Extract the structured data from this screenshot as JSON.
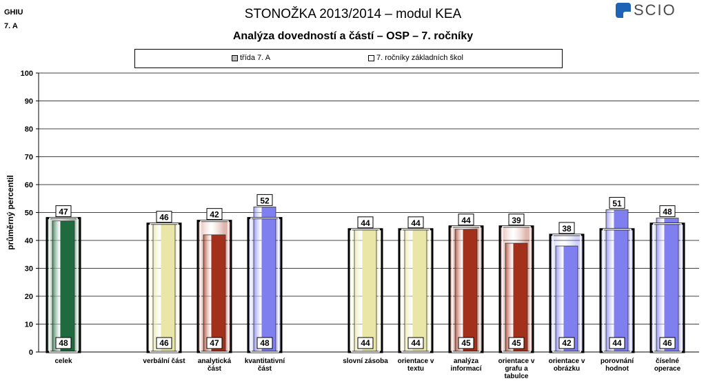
{
  "header": {
    "school": "GHIU",
    "class": "7. A"
  },
  "title": "STONOŽKA 2013/2014 – modul KEA",
  "subtitle": "Analýza dovedností a částí – OSP – 7. ročníky",
  "logo": {
    "text": "SCIO"
  },
  "legend": {
    "class_label": "třída  7. A",
    "schools_label": "7. ročníky základních škol"
  },
  "colors": {
    "dark_green": "#1f6b3f",
    "cream": "#e9e6a8",
    "brown": "#a3301a",
    "blue": "#7f7ff0"
  },
  "chart_data": {
    "type": "bar",
    "ylabel": "průměrný percentil",
    "ylim": [
      0,
      100
    ],
    "yticks": [
      0,
      10,
      20,
      30,
      40,
      50,
      60,
      70,
      80,
      90,
      100
    ],
    "grid": true,
    "categories": [
      "celek",
      "verbální část",
      "analytická část",
      "kvantitativní část",
      "slovní zásoba",
      "orientace v textu",
      "analýza informací",
      "orientace v grafu a tabulce",
      "orientace v obrázku",
      "porovnání hodnot",
      "číselné operace"
    ],
    "series": [
      {
        "name": "třída  7. A",
        "values": [
          47,
          46,
          42,
          52,
          44,
          44,
          44,
          39,
          38,
          51,
          48
        ]
      },
      {
        "name": "7. ročníky základních škol",
        "values": [
          48,
          46,
          47,
          48,
          44,
          44,
          45,
          45,
          42,
          44,
          46
        ]
      }
    ],
    "bar_colors": [
      "dark_green",
      "cream",
      "brown",
      "blue",
      "cream",
      "cream",
      "brown",
      "brown",
      "blue",
      "blue",
      "blue"
    ]
  }
}
